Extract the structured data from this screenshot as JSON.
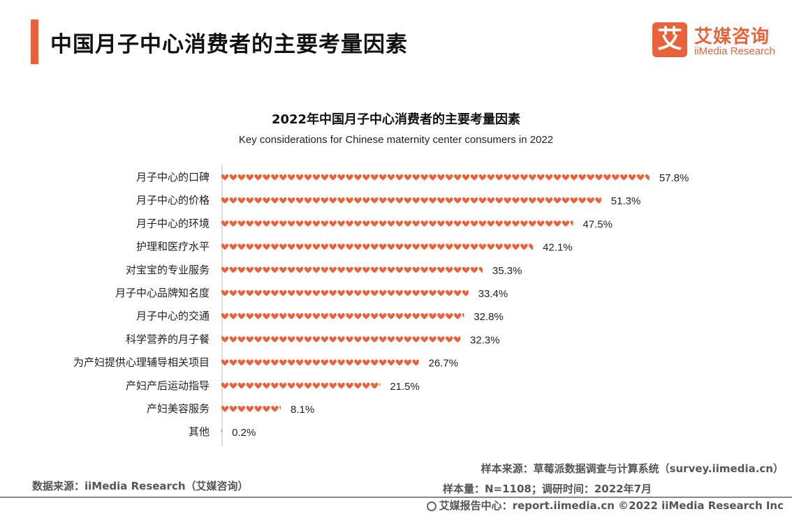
{
  "header": {
    "title": "中国月子中心消费者的主要考量因素",
    "logo_mark": "艾",
    "logo_cn": "艾媒咨询",
    "logo_en": "iiMedia Research",
    "accent_color": "#e8633a"
  },
  "chart_data": {
    "type": "bar",
    "title": "2022年中国月子中心消费者的主要考量因素",
    "subtitle": "Key considerations for Chinese maternity center consumers in 2022",
    "categories": [
      "月子中心的口碑",
      "月子中心的价格",
      "月子中心的环境",
      "护理和医疗水平",
      "对宝宝的专业服务",
      "月子中心品牌知名度",
      "月子中心的交通",
      "科学营养的月子餐",
      "为产妇提供心理辅导相关项目",
      "产妇产后运动指导",
      "产妇美容服务",
      "其他"
    ],
    "values": [
      57.8,
      51.3,
      47.5,
      42.1,
      35.3,
      33.4,
      32.8,
      32.3,
      26.7,
      21.5,
      8.1,
      0.2
    ],
    "value_labels": [
      "57.8%",
      "51.3%",
      "47.5%",
      "42.1%",
      "35.3%",
      "33.4%",
      "32.8%",
      "32.3%",
      "26.7%",
      "21.5%",
      "8.1%",
      "0.2%"
    ],
    "unit": "%",
    "orientation": "horizontal",
    "mark_shape": "heart",
    "mark_color": "#e8633a",
    "xlim": [
      0,
      60
    ]
  },
  "footer": {
    "data_source": "数据来源：iiMedia Research（艾媒咨询）",
    "sample_source": "样本来源：草莓派数据调查与计算系统（survey.iimedia.cn）",
    "sample_size": "样本量：N=1108；调研时间：2022年7月",
    "report_center": "艾媒报告中心：report.iimedia.cn  ©2022  iiMedia Research  Inc"
  }
}
